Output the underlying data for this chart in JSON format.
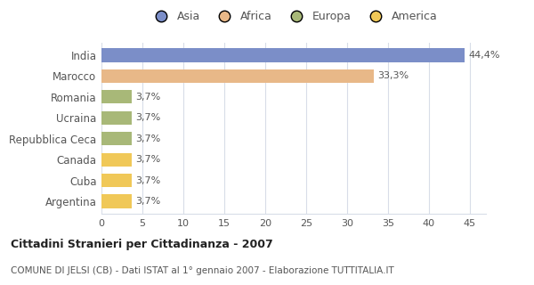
{
  "categories": [
    "India",
    "Marocco",
    "Romania",
    "Ucraina",
    "Repubblica Ceca",
    "Canada",
    "Cuba",
    "Argentina"
  ],
  "values": [
    44.4,
    33.3,
    3.7,
    3.7,
    3.7,
    3.7,
    3.7,
    3.7
  ],
  "bar_colors": [
    "#7b8ec8",
    "#e8b888",
    "#a8b878",
    "#a8b878",
    "#a8b878",
    "#f0c858",
    "#f0c858",
    "#f0c858"
  ],
  "value_labels": [
    "44,4%",
    "33,3%",
    "3,7%",
    "3,7%",
    "3,7%",
    "3,7%",
    "3,7%",
    "3,7%"
  ],
  "legend_labels": [
    "Asia",
    "Africa",
    "Europa",
    "America"
  ],
  "legend_colors": [
    "#7b8ec8",
    "#e8b888",
    "#a8b878",
    "#f0c858"
  ],
  "title": "Cittadini Stranieri per Cittadinanza - 2007",
  "subtitle": "COMUNE DI JELSI (CB) - Dati ISTAT al 1° gennaio 2007 - Elaborazione TUTTITALIA.IT",
  "xlim": [
    0,
    47
  ],
  "xticks": [
    0,
    5,
    10,
    15,
    20,
    25,
    30,
    35,
    40,
    45
  ],
  "background_color": "#ffffff",
  "grid_color": "#d8dde8"
}
